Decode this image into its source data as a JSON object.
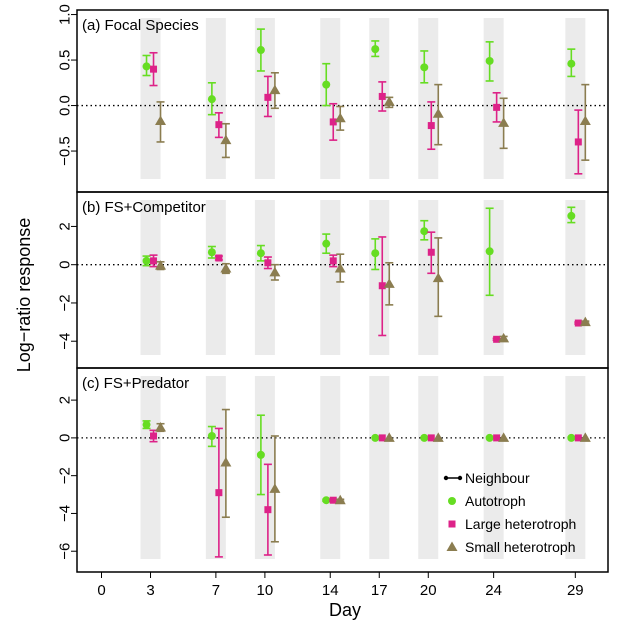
{
  "chart_data": {
    "type": "scatter",
    "error_bars": true,
    "grid": false,
    "reference_line": 0,
    "shaded_sampling_days": true,
    "xlabel": "Day",
    "ylabel": "Log−ratio response",
    "x_ticks": [
      0,
      3,
      7,
      10,
      14,
      17,
      20,
      24,
      29
    ],
    "x_tick_labels": [
      "0",
      "3",
      "7",
      "10",
      "14",
      "17",
      "20",
      "24",
      "29"
    ],
    "xlim": [
      -1.5,
      31
    ],
    "legend": {
      "position": "bottom-right of panel c",
      "line_entry": "Neighbour",
      "entries": [
        {
          "name": "Autotroph",
          "color": "#66dd22",
          "marker": "circle"
        },
        {
          "name": "Large heterotroph",
          "color": "#dd2288",
          "marker": "square"
        },
        {
          "name": "Small heterotroph",
          "color": "#8b7d50",
          "marker": "triangle"
        }
      ]
    },
    "panels": [
      {
        "title": "(a) Focal Species",
        "ylim": [
          -0.95,
          1.05
        ],
        "y_ticks": [
          -0.5,
          0.0,
          0.5,
          1.0
        ],
        "y_tick_labels": [
          "−0.5",
          "0.0",
          "0.5",
          "1.0"
        ],
        "series": [
          {
            "name": "Autotroph",
            "points": [
              {
                "day": 3,
                "y": 0.43,
                "lo": 0.33,
                "hi": 0.55
              },
              {
                "day": 7,
                "y": 0.07,
                "lo": -0.1,
                "hi": 0.25
              },
              {
                "day": 10,
                "y": 0.61,
                "lo": 0.38,
                "hi": 0.84
              },
              {
                "day": 14,
                "y": 0.23,
                "lo": 0.0,
                "hi": 0.46
              },
              {
                "day": 17,
                "y": 0.62,
                "lo": 0.54,
                "hi": 0.71
              },
              {
                "day": 20,
                "y": 0.42,
                "lo": 0.25,
                "hi": 0.6
              },
              {
                "day": 24,
                "y": 0.49,
                "lo": 0.27,
                "hi": 0.7
              },
              {
                "day": 29,
                "y": 0.46,
                "lo": 0.32,
                "hi": 0.62
              }
            ]
          },
          {
            "name": "Large heterotroph",
            "points": [
              {
                "day": 3,
                "y": 0.4,
                "lo": 0.22,
                "hi": 0.58
              },
              {
                "day": 7,
                "y": -0.21,
                "lo": -0.35,
                "hi": -0.08
              },
              {
                "day": 10,
                "y": 0.09,
                "lo": -0.12,
                "hi": 0.32
              },
              {
                "day": 14,
                "y": -0.18,
                "lo": -0.38,
                "hi": 0.02
              },
              {
                "day": 17,
                "y": 0.1,
                "lo": -0.06,
                "hi": 0.26
              },
              {
                "day": 20,
                "y": -0.22,
                "lo": -0.48,
                "hi": 0.04
              },
              {
                "day": 24,
                "y": -0.02,
                "lo": -0.18,
                "hi": 0.14
              },
              {
                "day": 29,
                "y": -0.4,
                "lo": -0.75,
                "hi": -0.05
              }
            ]
          },
          {
            "name": "Small heterotroph",
            "points": [
              {
                "day": 3,
                "y": -0.17,
                "lo": -0.4,
                "hi": 0.04
              },
              {
                "day": 7,
                "y": -0.38,
                "lo": -0.57,
                "hi": -0.2
              },
              {
                "day": 10,
                "y": 0.17,
                "lo": -0.03,
                "hi": 0.36
              },
              {
                "day": 14,
                "y": -0.14,
                "lo": -0.27,
                "hi": -0.01
              },
              {
                "day": 17,
                "y": 0.04,
                "lo": -0.02,
                "hi": 0.09
              },
              {
                "day": 20,
                "y": -0.09,
                "lo": -0.43,
                "hi": 0.23
              },
              {
                "day": 24,
                "y": -0.19,
                "lo": -0.47,
                "hi": 0.08
              },
              {
                "day": 29,
                "y": -0.17,
                "lo": -0.6,
                "hi": 0.23
              }
            ]
          }
        ]
      },
      {
        "title": "(b) FS+Competitor",
        "ylim": [
          -5.4,
          3.8
        ],
        "y_ticks": [
          -4,
          -2,
          0,
          2
        ],
        "y_tick_labels": [
          "−4",
          "−2",
          "0",
          "2"
        ],
        "series": [
          {
            "name": "Autotroph",
            "points": [
              {
                "day": 3,
                "y": 0.2,
                "lo": -0.05,
                "hi": 0.45
              },
              {
                "day": 7,
                "y": 0.65,
                "lo": 0.35,
                "hi": 0.95
              },
              {
                "day": 10,
                "y": 0.6,
                "lo": 0.2,
                "hi": 1.0
              },
              {
                "day": 14,
                "y": 1.1,
                "lo": 0.6,
                "hi": 1.6
              },
              {
                "day": 17,
                "y": 0.6,
                "lo": -0.25,
                "hi": 1.35
              },
              {
                "day": 20,
                "y": 1.75,
                "lo": 1.3,
                "hi": 2.3
              },
              {
                "day": 24,
                "y": 0.7,
                "lo": -1.6,
                "hi": 2.95
              },
              {
                "day": 29,
                "y": 2.55,
                "lo": 2.2,
                "hi": 3.0
              }
            ]
          },
          {
            "name": "Large heterotroph",
            "points": [
              {
                "day": 3,
                "y": 0.2,
                "lo": -0.1,
                "hi": 0.5
              },
              {
                "day": 7,
                "y": 0.35,
                "lo": 0.25,
                "hi": 0.45
              },
              {
                "day": 10,
                "y": 0.1,
                "lo": -0.2,
                "hi": 0.4
              },
              {
                "day": 14,
                "y": 0.2,
                "lo": -0.1,
                "hi": 0.5
              },
              {
                "day": 17,
                "y": -1.1,
                "lo": -3.7,
                "hi": 1.45
              },
              {
                "day": 20,
                "y": 0.65,
                "lo": -0.45,
                "hi": 1.7
              },
              {
                "day": 24,
                "y": -3.9,
                "lo": -3.95,
                "hi": -3.85
              },
              {
                "day": 29,
                "y": -3.05,
                "lo": -3.1,
                "hi": -3.0
              }
            ]
          },
          {
            "name": "Small heterotroph",
            "points": [
              {
                "day": 3,
                "y": -0.05,
                "lo": -0.25,
                "hi": 0.15
              },
              {
                "day": 7,
                "y": -0.2,
                "lo": -0.45,
                "hi": 0.05
              },
              {
                "day": 10,
                "y": -0.4,
                "lo": -0.8,
                "hi": 0.0
              },
              {
                "day": 14,
                "y": -0.2,
                "lo": -0.9,
                "hi": 0.55
              },
              {
                "day": 17,
                "y": -1.0,
                "lo": -2.1,
                "hi": 0.1
              },
              {
                "day": 20,
                "y": -0.7,
                "lo": -2.7,
                "hi": 1.4
              },
              {
                "day": 24,
                "y": -3.85,
                "lo": -3.95,
                "hi": -3.75
              },
              {
                "day": 29,
                "y": -3.0,
                "lo": -3.05,
                "hi": -2.95
              }
            ]
          }
        ]
      },
      {
        "title": "(c) FS+Predator",
        "ylim": [
          -7.1,
          3.7
        ],
        "y_ticks": [
          -6,
          -4,
          -2,
          0,
          2
        ],
        "y_tick_labels": [
          "−6",
          "−4",
          "−2",
          "0",
          "2"
        ],
        "series": [
          {
            "name": "Autotroph",
            "points": [
              {
                "day": 3,
                "y": 0.7,
                "lo": 0.5,
                "hi": 0.9
              },
              {
                "day": 7,
                "y": 0.1,
                "lo": -0.45,
                "hi": 0.6
              },
              {
                "day": 10,
                "y": -0.9,
                "lo": -3.0,
                "hi": 1.2
              },
              {
                "day": 14,
                "y": -3.3,
                "lo": -3.35,
                "hi": -3.25
              },
              {
                "day": 17,
                "y": 0.0,
                "lo": 0.0,
                "hi": 0.0
              },
              {
                "day": 20,
                "y": 0.0,
                "lo": 0.0,
                "hi": 0.0
              },
              {
                "day": 24,
                "y": 0.0,
                "lo": 0.0,
                "hi": 0.0
              },
              {
                "day": 29,
                "y": 0.0,
                "lo": 0.0,
                "hi": 0.0
              }
            ]
          },
          {
            "name": "Large heterotroph",
            "points": [
              {
                "day": 3,
                "y": 0.1,
                "lo": -0.2,
                "hi": 0.4
              },
              {
                "day": 7,
                "y": -2.9,
                "lo": -6.3,
                "hi": 0.5
              },
              {
                "day": 10,
                "y": -3.8,
                "lo": -6.2,
                "hi": -1.4
              },
              {
                "day": 14,
                "y": -3.3,
                "lo": -3.35,
                "hi": -3.25
              },
              {
                "day": 17,
                "y": 0.0,
                "lo": 0.0,
                "hi": 0.0
              },
              {
                "day": 20,
                "y": 0.0,
                "lo": 0.0,
                "hi": 0.0
              },
              {
                "day": 24,
                "y": 0.0,
                "lo": 0.0,
                "hi": 0.0
              },
              {
                "day": 29,
                "y": 0.0,
                "lo": 0.0,
                "hi": 0.0
              }
            ]
          },
          {
            "name": "Small heterotroph",
            "points": [
              {
                "day": 3,
                "y": 0.55,
                "lo": 0.35,
                "hi": 0.75
              },
              {
                "day": 7,
                "y": -1.3,
                "lo": -4.2,
                "hi": 1.5
              },
              {
                "day": 10,
                "y": -2.7,
                "lo": -5.5,
                "hi": 0.1
              },
              {
                "day": 14,
                "y": -3.3,
                "lo": -3.35,
                "hi": -3.25
              },
              {
                "day": 17,
                "y": 0.0,
                "lo": 0.0,
                "hi": 0.0
              },
              {
                "day": 20,
                "y": 0.0,
                "lo": 0.0,
                "hi": 0.0
              },
              {
                "day": 24,
                "y": 0.0,
                "lo": 0.0,
                "hi": 0.0
              },
              {
                "day": 29,
                "y": 0.0,
                "lo": 0.0,
                "hi": 0.0
              }
            ]
          }
        ]
      }
    ]
  }
}
